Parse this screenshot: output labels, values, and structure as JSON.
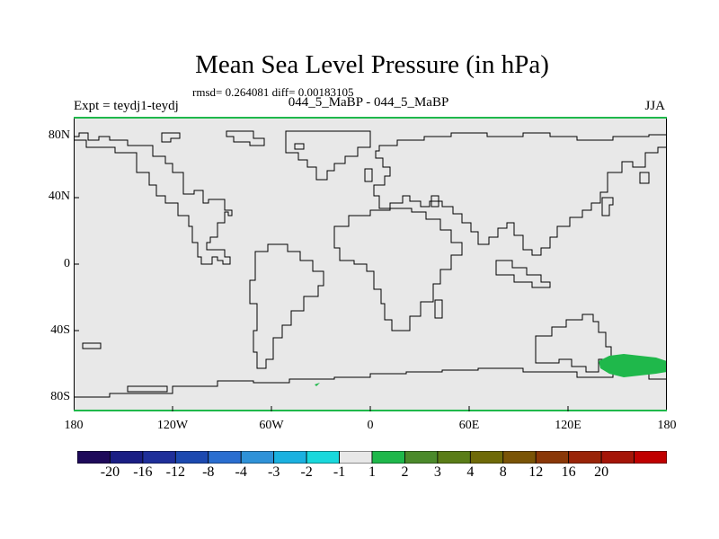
{
  "title": "Mean Sea Level Pressure (in hPa)",
  "stats": "rmsd= 0.264081 diff= 0.00183105",
  "experiment": "Expt = teydj1-teydj",
  "period": "044_5_MaBP - 044_5_MaBP",
  "season": "JJA",
  "map": {
    "background_color": "#e8e8e8",
    "coast_color": "#000000",
    "lat_labels": [
      "80N",
      "40N",
      "0",
      "40S",
      "80S"
    ],
    "lon_labels": [
      "180",
      "120W",
      "60W",
      "0",
      "60E",
      "120E",
      "180"
    ],
    "anomaly": {
      "range_hpa": "1 to 2",
      "color": "#1fb84b",
      "region": "south of Australia"
    }
  },
  "colorbar": {
    "colors": [
      "#1e0a5a",
      "#1a1e84",
      "#1f2f9a",
      "#1c49b0",
      "#2a6ed0",
      "#2f92d8",
      "#1ab1e0",
      "#19d8dc",
      "#e8e8e8",
      "#1fb84b",
      "#4b8a2b",
      "#5a7d17",
      "#6f6a08",
      "#7a5406",
      "#8a3808",
      "#9a2408",
      "#a51508",
      "#c00000"
    ],
    "labels": [
      "-20",
      "-16",
      "-12",
      "-8",
      "-4",
      "-3",
      "-2",
      "-1",
      "1",
      "2",
      "3",
      "4",
      "8",
      "12",
      "16",
      "20"
    ]
  }
}
